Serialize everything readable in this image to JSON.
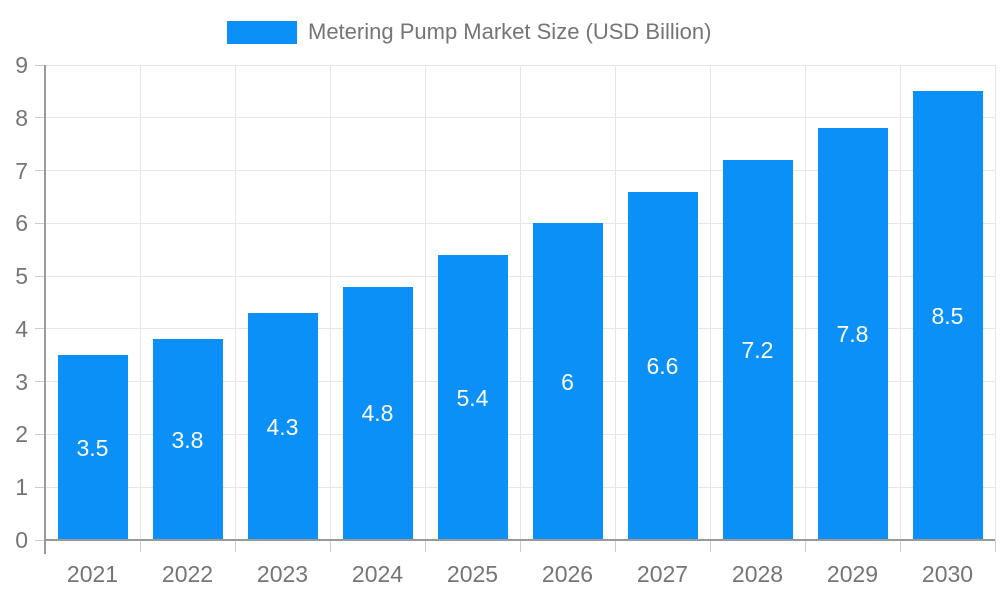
{
  "legend": {
    "label": "Metering Pump Market Size (USD Billion)"
  },
  "chart_data": {
    "type": "bar",
    "title": "Metering Pump Market Size (USD Billion)",
    "categories": [
      "2021",
      "2022",
      "2023",
      "2024",
      "2025",
      "2026",
      "2027",
      "2028",
      "2029",
      "2030"
    ],
    "values": [
      3.5,
      3.8,
      4.3,
      4.8,
      5.4,
      6,
      6.6,
      7.2,
      7.8,
      8.5
    ],
    "bar_labels": [
      "3.5",
      "3.8",
      "4.3",
      "4.8",
      "5.4",
      "6",
      "6.6",
      "7.2",
      "7.8",
      "8.5"
    ],
    "xlabel": "",
    "ylabel": "",
    "ylim": [
      0,
      9
    ],
    "y_ticks": [
      0,
      1,
      2,
      3,
      4,
      5,
      6,
      7,
      8,
      9
    ],
    "grid": true,
    "legend_position": "top",
    "colors": {
      "bar": "#0a90f6",
      "bar_label_text": "#ffffff",
      "axis_line": "#999999",
      "grid_line": "#e6e6e6",
      "tick_mark": "#cccccc",
      "axis_text": "#757575",
      "legend_text": "#757575",
      "background": "#ffffff"
    }
  }
}
